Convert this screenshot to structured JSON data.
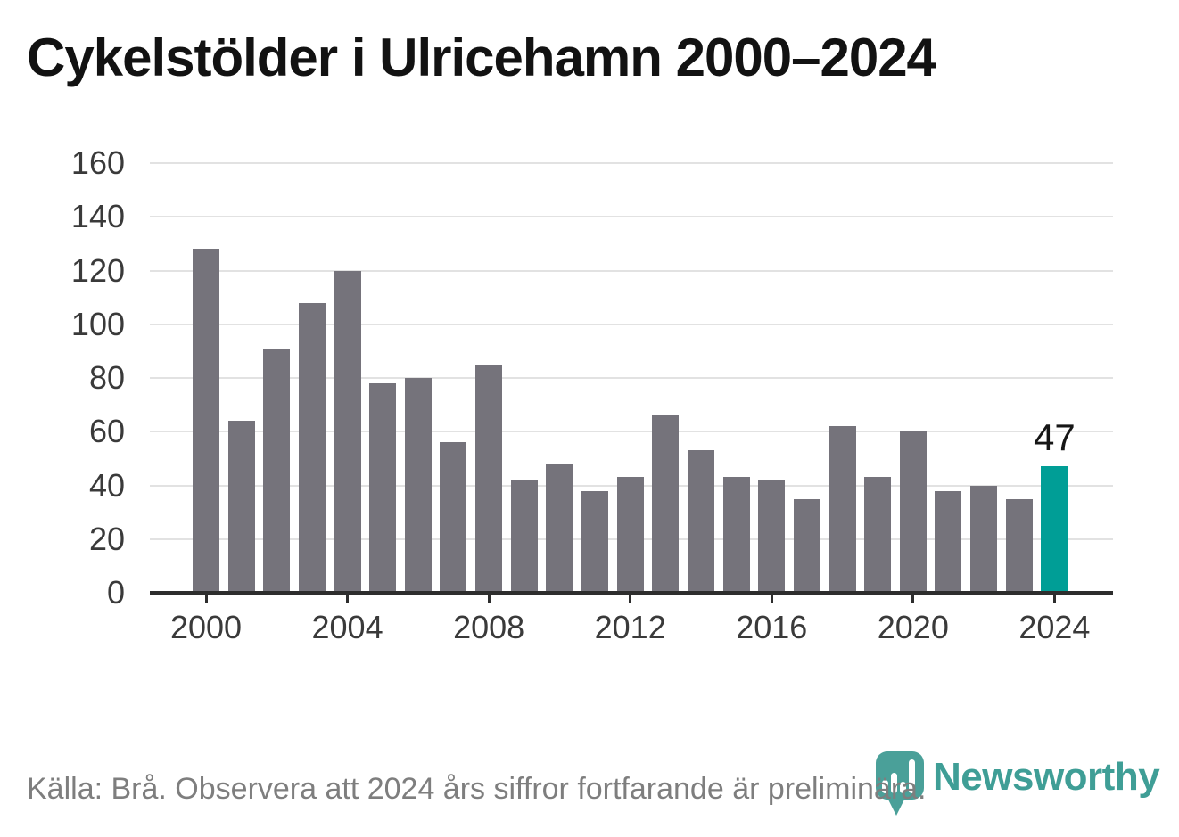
{
  "title": "Cykelstölder i Ulricehamn 2000–2024",
  "chart_data": {
    "type": "bar",
    "title": "Cykelstölder i Ulricehamn 2000–2024",
    "categories": [
      2000,
      2001,
      2002,
      2003,
      2004,
      2005,
      2006,
      2007,
      2008,
      2009,
      2010,
      2011,
      2012,
      2013,
      2014,
      2015,
      2016,
      2017,
      2018,
      2019,
      2020,
      2021,
      2022,
      2023,
      2024
    ],
    "values": [
      128,
      64,
      91,
      108,
      120,
      78,
      80,
      56,
      85,
      42,
      48,
      38,
      43,
      66,
      53,
      43,
      42,
      35,
      62,
      43,
      60,
      38,
      40,
      35,
      47
    ],
    "highlight_index": 24,
    "annotation": {
      "index": 24,
      "label": "47"
    },
    "xlabel": "",
    "ylabel": "",
    "ylim": [
      0,
      160
    ],
    "y_ticks": [
      0,
      20,
      40,
      60,
      80,
      100,
      120,
      140,
      160
    ],
    "x_ticks": [
      2000,
      2004,
      2008,
      2012,
      2016,
      2020,
      2024
    ],
    "grid": "horizontal",
    "legend": "none",
    "bar_color": "#75737b",
    "highlight_color": "#009e96"
  },
  "footer": {
    "source": "Källa: Brå. Observera att 2024 års siffror fortfarande är preliminära.",
    "brand": "Newsworthy"
  },
  "colors": {
    "background": "#ffffff",
    "title": "#121212",
    "axis": "#2d2d2d",
    "gridline": "#e2e2e2",
    "tick_label": "#3a3a3a",
    "source_text": "#7e7e7e",
    "brand_teal": "#3f9e96"
  }
}
